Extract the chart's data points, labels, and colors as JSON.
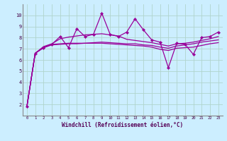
{
  "xlabel": "Windchill (Refroidissement éolien,°C)",
  "x": [
    0,
    1,
    2,
    3,
    4,
    5,
    6,
    7,
    8,
    9,
    10,
    11,
    12,
    13,
    14,
    15,
    16,
    17,
    18,
    19,
    20,
    21,
    22,
    23
  ],
  "line1": [
    1.8,
    6.6,
    7.1,
    7.4,
    8.1,
    7.1,
    8.8,
    8.1,
    8.3,
    10.2,
    8.3,
    8.1,
    8.5,
    9.7,
    8.7,
    7.8,
    7.6,
    5.3,
    7.5,
    7.4,
    6.5,
    8.0,
    8.1,
    8.5
  ],
  "line2": [
    1.8,
    6.6,
    7.2,
    7.45,
    7.9,
    8.05,
    8.15,
    8.25,
    8.3,
    8.35,
    8.25,
    8.15,
    7.85,
    7.75,
    7.65,
    7.55,
    7.4,
    7.25,
    7.45,
    7.5,
    7.6,
    7.75,
    7.9,
    8.1
  ],
  "line3": [
    1.8,
    6.6,
    7.1,
    7.35,
    7.4,
    7.45,
    7.45,
    7.5,
    7.5,
    7.5,
    7.45,
    7.4,
    7.35,
    7.3,
    7.25,
    7.15,
    6.95,
    6.85,
    7.05,
    7.1,
    7.15,
    7.3,
    7.45,
    7.55
  ],
  "line4": [
    1.8,
    6.6,
    7.1,
    7.4,
    7.45,
    7.5,
    7.5,
    7.5,
    7.55,
    7.6,
    7.55,
    7.5,
    7.45,
    7.45,
    7.35,
    7.3,
    7.15,
    7.05,
    7.25,
    7.35,
    7.45,
    7.6,
    7.7,
    7.8
  ],
  "line_color": "#990099",
  "bg_color": "#cceeff",
  "grid_color": "#b0d4cc",
  "ylim": [
    1,
    11
  ],
  "xlim": [
    -0.5,
    23.5
  ],
  "yticks": [
    2,
    3,
    4,
    5,
    6,
    7,
    8,
    9,
    10
  ],
  "xticks": [
    0,
    1,
    2,
    3,
    4,
    5,
    6,
    7,
    8,
    9,
    10,
    11,
    12,
    13,
    14,
    15,
    16,
    17,
    18,
    19,
    20,
    21,
    22,
    23
  ]
}
